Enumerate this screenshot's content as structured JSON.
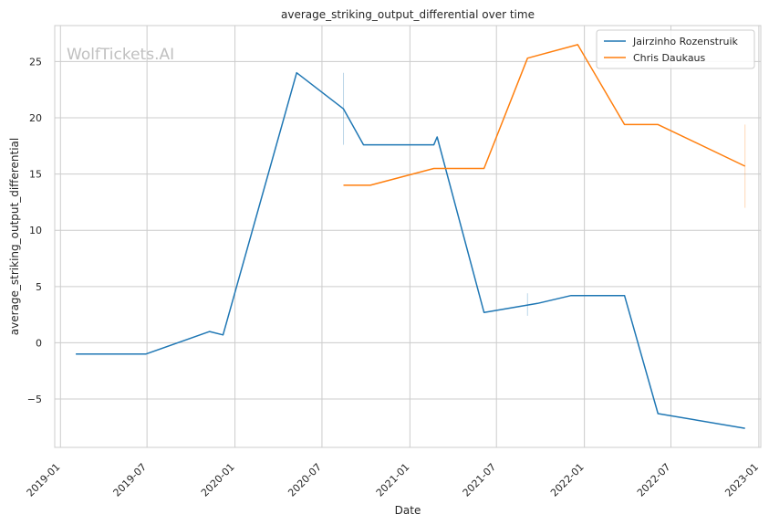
{
  "chart_data": {
    "type": "line",
    "title": "average_striking_output_differential over time",
    "xlabel": "Date",
    "ylabel": "average_striking_output_differential",
    "watermark": "WolfTickets.AI",
    "x_ticks": [
      "2019-01",
      "2019-07",
      "2020-01",
      "2020-07",
      "2021-01",
      "2021-07",
      "2022-01",
      "2022-07",
      "2023-01"
    ],
    "y_ticks": [
      -5,
      0,
      5,
      10,
      15,
      20,
      25
    ],
    "xlim": [
      "2018-12-20",
      "2023-01-05"
    ],
    "ylim": [
      -9.3,
      28.2
    ],
    "grid": true,
    "legend_position": "top-right",
    "series": [
      {
        "name": "Jairzinho Rozenstruik",
        "color": "#1f77b4",
        "x": [
          "2019-02-02",
          "2019-06-29",
          "2019-11-09",
          "2019-12-07",
          "2020-05-09",
          "2020-08-15",
          "2020-09-26",
          "2021-02-20",
          "2021-02-27",
          "2021-06-05",
          "2021-09-25",
          "2021-12-04",
          "2022-03-26",
          "2022-06-04",
          "2022-12-03"
        ],
        "y": [
          -1.0,
          -1.0,
          1.0,
          0.7,
          24.0,
          20.8,
          17.6,
          17.6,
          18.3,
          2.7,
          3.5,
          4.2,
          4.2,
          -6.3,
          -7.6
        ]
      },
      {
        "name": "Chris Daukaus",
        "color": "#ff7f0e",
        "x": [
          "2020-08-15",
          "2020-10-10",
          "2021-02-20",
          "2021-06-05",
          "2021-09-04",
          "2021-12-18",
          "2022-03-26",
          "2022-06-04",
          "2022-12-03"
        ],
        "y": [
          14.0,
          14.0,
          15.5,
          15.5,
          25.3,
          26.5,
          19.4,
          19.4,
          15.7
        ]
      }
    ],
    "error_marks": [
      {
        "series": "Jairzinho Rozenstruik",
        "x": "2020-08-15",
        "y_low": 17.6,
        "y_high": 24.0
      },
      {
        "series": "Jairzinho Rozenstruik",
        "x": "2021-09-04",
        "y_low": 2.4,
        "y_high": 4.4
      },
      {
        "series": "Chris Daukaus",
        "x": "2022-12-03",
        "y_low": 12.0,
        "y_high": 19.4
      }
    ]
  }
}
